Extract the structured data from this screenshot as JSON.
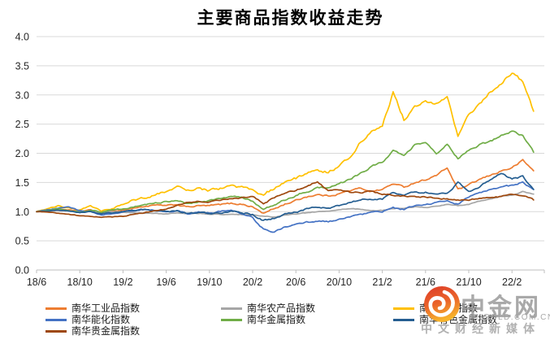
{
  "title": "主要商品指数收益走势",
  "chart_data": {
    "type": "line",
    "title": "主要商品指数收益走势",
    "x_start_month": "2018/6",
    "x_tick_labels": [
      "18/6",
      "18/10",
      "19/2",
      "19/6",
      "19/10",
      "20/2",
      "20/6",
      "20/10",
      "21/2",
      "21/6",
      "21/10",
      "22/2"
    ],
    "x_tick_interval_months": 4,
    "y_tick_labels": [
      "0.0",
      "0.5",
      "1.0",
      "1.5",
      "2.0",
      "2.5",
      "3.0",
      "3.5",
      "4.0"
    ],
    "ylim": [
      0.0,
      4.0
    ],
    "grid": "horizontal",
    "legend_position": "bottom",
    "gridline_color": "#D9D9D9",
    "axis_color": "#BFBFBF",
    "series": [
      {
        "name": "南华工业品指数",
        "color": "#ED7D31",
        "jitter": 0.032,
        "values": [
          1.0,
          1.02,
          1.05,
          1.03,
          1.0,
          1.03,
          0.98,
          1.01,
          1.03,
          1.06,
          1.09,
          1.11,
          1.1,
          1.12,
          1.08,
          1.1,
          1.1,
          1.12,
          1.14,
          1.13,
          1.08,
          0.97,
          1.05,
          1.13,
          1.19,
          1.26,
          1.29,
          1.27,
          1.31,
          1.36,
          1.4,
          1.35,
          1.38,
          1.48,
          1.42,
          1.5,
          1.55,
          1.62,
          1.75,
          1.38,
          1.45,
          1.55,
          1.62,
          1.7,
          1.75,
          1.88,
          1.7
        ]
      },
      {
        "name": "南华农产品指数",
        "color": "#A6A6A6",
        "jitter": 0.014,
        "values": [
          1.0,
          1.01,
          1.02,
          1.01,
          1.0,
          1.01,
          0.99,
          1.0,
          0.99,
          0.98,
          0.97,
          0.97,
          0.96,
          0.98,
          0.96,
          0.97,
          0.96,
          0.95,
          0.96,
          0.95,
          0.94,
          0.92,
          0.91,
          0.94,
          0.96,
          0.98,
          1.0,
          1.01,
          1.03,
          1.05,
          1.04,
          1.02,
          1.02,
          1.05,
          1.06,
          1.08,
          1.07,
          1.09,
          1.12,
          1.1,
          1.12,
          1.18,
          1.22,
          1.26,
          1.28,
          1.34,
          1.3
        ]
      },
      {
        "name": "南华黑色指数",
        "color": "#FFC000",
        "jitter": 0.055,
        "values": [
          1.0,
          1.05,
          1.1,
          1.06,
          1.03,
          1.09,
          1.02,
          1.06,
          1.12,
          1.2,
          1.24,
          1.3,
          1.35,
          1.44,
          1.36,
          1.4,
          1.36,
          1.4,
          1.44,
          1.42,
          1.36,
          1.3,
          1.4,
          1.48,
          1.56,
          1.66,
          1.72,
          1.68,
          1.78,
          1.95,
          2.2,
          2.4,
          2.45,
          3.05,
          2.58,
          2.8,
          2.9,
          2.85,
          2.95,
          2.3,
          2.65,
          2.85,
          3.05,
          3.2,
          3.38,
          3.22,
          2.72
        ]
      },
      {
        "name": "南华能化指数",
        "color": "#4472C4",
        "jitter": 0.03,
        "values": [
          1.0,
          1.03,
          1.06,
          1.08,
          1.02,
          1.0,
          0.94,
          0.96,
          1.0,
          1.02,
          1.04,
          1.02,
          1.0,
          1.02,
          0.97,
          1.0,
          0.98,
          1.0,
          1.02,
          0.96,
          0.9,
          0.7,
          0.66,
          0.74,
          0.78,
          0.82,
          0.84,
          0.83,
          0.86,
          0.9,
          0.94,
          0.98,
          1.0,
          1.08,
          1.04,
          1.1,
          1.12,
          1.15,
          1.2,
          1.12,
          1.25,
          1.32,
          1.38,
          1.42,
          1.45,
          1.5,
          1.38
        ]
      },
      {
        "name": "南华金属指数",
        "color": "#70AD47",
        "jitter": 0.035,
        "values": [
          1.0,
          1.02,
          1.05,
          1.02,
          0.99,
          1.03,
          0.99,
          1.03,
          1.04,
          1.08,
          1.12,
          1.15,
          1.17,
          1.2,
          1.14,
          1.16,
          1.18,
          1.22,
          1.26,
          1.24,
          1.17,
          1.05,
          1.12,
          1.2,
          1.27,
          1.35,
          1.4,
          1.42,
          1.48,
          1.55,
          1.65,
          1.78,
          1.85,
          2.05,
          1.95,
          2.15,
          2.2,
          2.0,
          2.15,
          1.9,
          2.05,
          2.15,
          2.2,
          2.3,
          2.37,
          2.3,
          2.02
        ]
      },
      {
        "name": "南华有色金属指数",
        "color": "#255E91",
        "jitter": 0.032,
        "values": [
          1.0,
          1.01,
          1.03,
          1.01,
          0.98,
          1.0,
          0.96,
          0.98,
          1.0,
          1.02,
          1.04,
          1.02,
          1.0,
          1.02,
          0.97,
          0.99,
          0.97,
          0.98,
          1.0,
          0.99,
          0.95,
          0.85,
          0.89,
          0.95,
          0.99,
          1.05,
          1.08,
          1.06,
          1.1,
          1.15,
          1.2,
          1.22,
          1.22,
          1.32,
          1.28,
          1.33,
          1.33,
          1.3,
          1.32,
          1.5,
          1.35,
          1.42,
          1.55,
          1.65,
          1.55,
          1.6,
          1.38
        ]
      },
      {
        "name": "南华贵金属指数",
        "color": "#9E480E",
        "jitter": 0.026,
        "values": [
          1.0,
          0.99,
          0.97,
          0.95,
          0.93,
          0.92,
          0.9,
          0.91,
          0.92,
          0.95,
          0.98,
          1.02,
          1.05,
          1.1,
          1.16,
          1.18,
          1.17,
          1.19,
          1.22,
          1.24,
          1.26,
          1.14,
          1.24,
          1.32,
          1.36,
          1.44,
          1.52,
          1.35,
          1.38,
          1.33,
          1.33,
          1.35,
          1.3,
          1.28,
          1.26,
          1.25,
          1.25,
          1.23,
          1.22,
          1.2,
          1.2,
          1.22,
          1.24,
          1.26,
          1.3,
          1.28,
          1.2
        ]
      }
    ]
  },
  "watermark": {
    "site_name": "中金网",
    "domain": "CNGOLD.COM.CN",
    "tagline": "中文财经新媒体",
    "logo_outer_color": "#E2432A",
    "logo_inner_color": "#F7B32B"
  }
}
